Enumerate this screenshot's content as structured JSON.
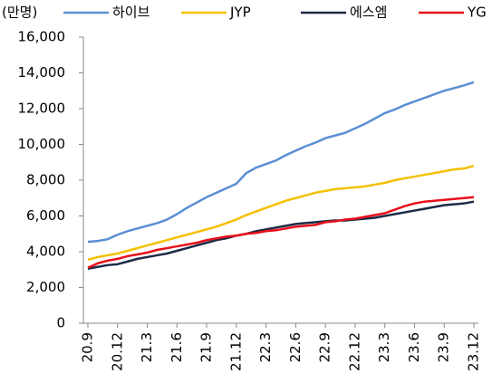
{
  "chart_data": {
    "type": "line",
    "y_label": "(만명)",
    "categories": [
      "20.9",
      null,
      null,
      "20.12",
      null,
      null,
      "21.3",
      null,
      null,
      "21.6",
      null,
      null,
      "21.9",
      null,
      null,
      "21.12",
      null,
      null,
      "22.3",
      null,
      null,
      "22.6",
      null,
      null,
      "22.9",
      null,
      null,
      "22.12",
      null,
      null,
      "23.3",
      null,
      null,
      "23.6",
      null,
      null,
      "23.9",
      null,
      null,
      "23.12"
    ],
    "series": [
      {
        "name": "하이브",
        "color": "#5b8fd4",
        "values": [
          4550,
          4600,
          4700,
          4950,
          5150,
          5300,
          5450,
          5600,
          5800,
          6100,
          6450,
          6750,
          7050,
          7300,
          7550,
          7800,
          8400,
          8700,
          8900,
          9100,
          9400,
          9650,
          9900,
          10100,
          10350,
          10500,
          10650,
          10900,
          11150,
          11450,
          11750,
          11950,
          12200,
          12400,
          12600,
          12800,
          13000,
          13150,
          13300,
          13480
        ]
      },
      {
        "name": "JYP",
        "color": "#f5c000",
        "values": [
          3550,
          3700,
          3800,
          3900,
          4050,
          4200,
          4350,
          4500,
          4650,
          4800,
          4950,
          5100,
          5250,
          5400,
          5600,
          5800,
          6050,
          6250,
          6450,
          6650,
          6850,
          7000,
          7150,
          7300,
          7400,
          7500,
          7550,
          7600,
          7650,
          7750,
          7850,
          8000,
          8100,
          8200,
          8300,
          8400,
          8500,
          8600,
          8650,
          8800
        ]
      },
      {
        "name": "에스엠",
        "color": "#1c2b45",
        "values": [
          3050,
          3150,
          3250,
          3300,
          3450,
          3600,
          3700,
          3800,
          3900,
          4050,
          4200,
          4350,
          4500,
          4650,
          4750,
          4900,
          5000,
          5150,
          5250,
          5350,
          5450,
          5550,
          5600,
          5650,
          5700,
          5750,
          5750,
          5800,
          5850,
          5900,
          6000,
          6100,
          6200,
          6300,
          6400,
          6500,
          6600,
          6650,
          6700,
          6800
        ]
      },
      {
        "name": "YG",
        "color": "#e8101c",
        "values": [
          3100,
          3350,
          3500,
          3600,
          3750,
          3850,
          3950,
          4100,
          4200,
          4300,
          4400,
          4500,
          4650,
          4750,
          4850,
          4900,
          5000,
          5050,
          5150,
          5200,
          5300,
          5400,
          5450,
          5500,
          5650,
          5700,
          5800,
          5850,
          5950,
          6050,
          6150,
          6350,
          6550,
          6700,
          6800,
          6850,
          6900,
          6950,
          7000,
          7050
        ]
      }
    ],
    "ylim": [
      0,
      16000
    ],
    "yticks": [
      0,
      {
        "value": 2000,
        "label": "2,000"
      },
      {
        "value": 4000,
        "label": "4,000"
      },
      {
        "value": 6000,
        "label": "6,000"
      },
      {
        "value": 8000,
        "label": "8,000"
      },
      {
        "value": 10000,
        "label": "10,000"
      },
      {
        "value": 12000,
        "label": "12,000"
      },
      {
        "value": 14000,
        "label": "14,000"
      },
      {
        "value": 16000,
        "label": "16,000"
      }
    ]
  }
}
